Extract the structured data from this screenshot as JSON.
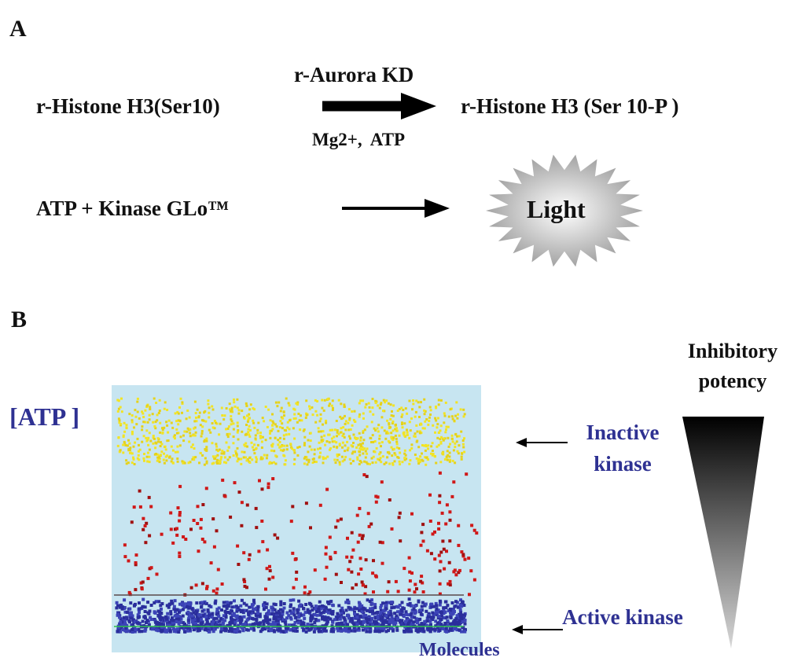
{
  "panel_a": {
    "label": "A",
    "enzyme": "r-Aurora KD",
    "substrate": "r-Histone H3(Ser10)",
    "product": "r-Histone H3 (Ser 10-P )",
    "cofactors": "Mg2+,  ATP",
    "detection": "ATP + Kinase GLo™",
    "output": "Light"
  },
  "panel_b": {
    "label": "B",
    "y_label": "[ATP ]",
    "x_label": "Molecules",
    "inactive": "Inactive kinase",
    "active": "Active kinase",
    "gradient_label": "Inhibitory potency"
  }
}
